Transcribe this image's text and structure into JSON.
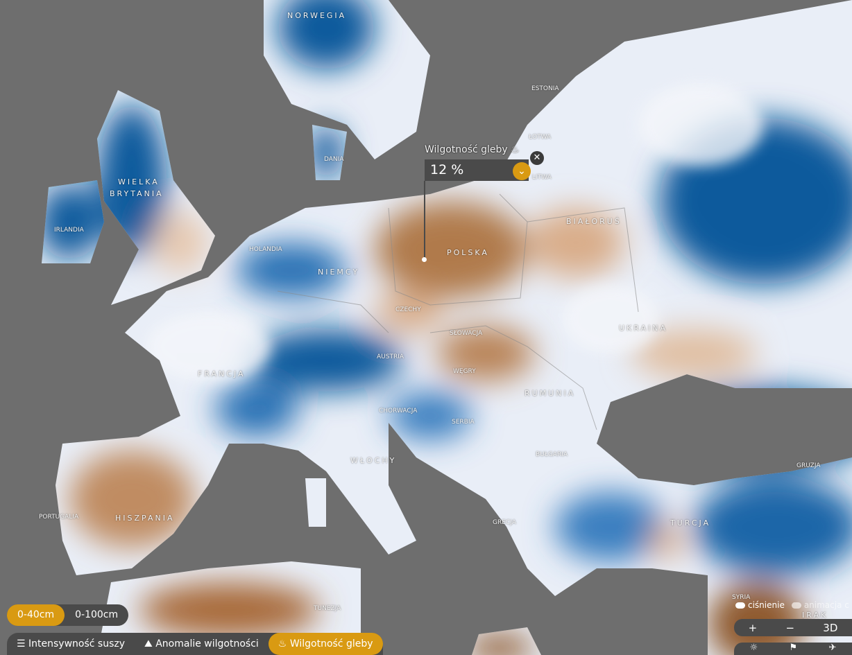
{
  "popup": {
    "title": "Wilgotność gleby",
    "value": "12 %"
  },
  "countries": {
    "norwegia": "NORWEGIA",
    "wielka_brytania_1": "WIELKA",
    "wielka_brytania_2": "BRYTANIA",
    "irlandia": "IRLANDIA",
    "dania": "DANIA",
    "estonia": "ESTONIA",
    "lotwa": "ŁOTWA",
    "litwa": "LITWA",
    "holandia": "HOLANDIA",
    "niemcy": "NIEMCY",
    "polska": "POLSKA",
    "bialorus": "BIAŁORUŚ",
    "czechy": "CZECHY",
    "slowacja": "SŁOWACJA",
    "austria": "AUSTRIA",
    "wegry": "WĘGRY",
    "ukraina": "UKRAINA",
    "francja": "FRANCJA",
    "rumunia": "RUMUNIA",
    "chorwacja": "CHORWACJA",
    "serbia": "SERBIA",
    "bulgaria": "BUŁGARIA",
    "wlochy": "WŁOCHY",
    "portugalia": "PORTUGALIA",
    "hiszpania": "HISZPANIA",
    "grecja": "GRECJA",
    "turcja": "TURCJA",
    "gruzja": "GRUZJA",
    "syria": "SYRIA",
    "irak": "IRAK",
    "tunezja": "TUNEZJA"
  },
  "depth": {
    "options": [
      "0-40cm",
      "0-100cm"
    ],
    "selected": "0-40cm"
  },
  "layers": {
    "items": [
      "Intensywność suszy",
      "Anomalie wilgotności",
      "Wilgotność gleby"
    ],
    "selected": "Wilgotność gleby"
  },
  "toggles": {
    "pressure": "ciśnienie",
    "animation": "animacja c"
  },
  "controls": {
    "zoom_in": "+",
    "zoom_out": "−",
    "view3d": "3D"
  },
  "colors": {
    "sea": "#6e6e6e",
    "wet": "#0e5a9c",
    "mid": "#f4f6fa",
    "dry": "#a86a3a",
    "accent": "#d99a12"
  }
}
